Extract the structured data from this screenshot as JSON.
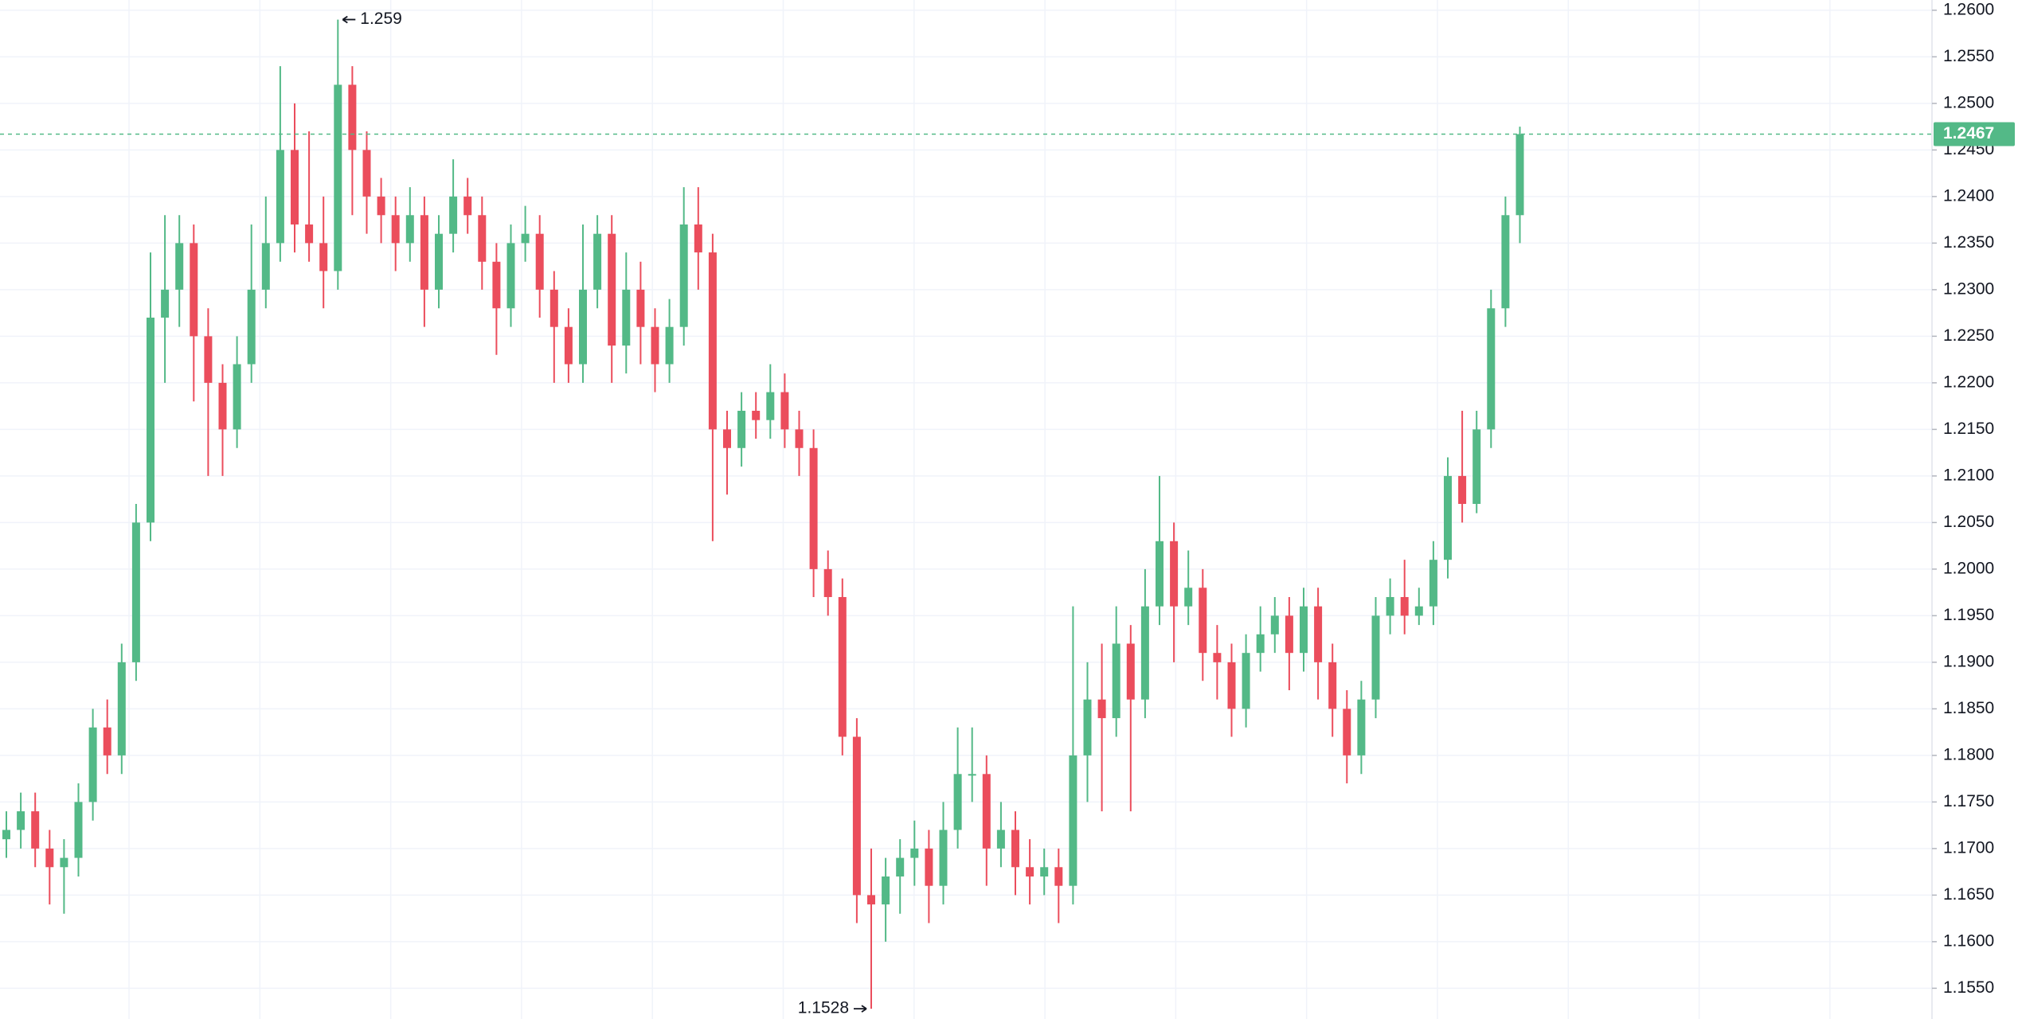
{
  "chart_data": {
    "type": "candlestick",
    "up_color": "#53b987",
    "down_color": "#eb4d5c",
    "grid": true,
    "ylim": [
      1.1517,
      1.2611
    ],
    "yticks": [
      {
        "value": 1.26,
        "label": "1.2600"
      },
      {
        "value": 1.255,
        "label": "1.2550"
      },
      {
        "value": 1.25,
        "label": "1.2500"
      },
      {
        "value": 1.245,
        "label": "1.2450"
      },
      {
        "value": 1.24,
        "label": "1.2400"
      },
      {
        "value": 1.235,
        "label": "1.2350"
      },
      {
        "value": 1.23,
        "label": "1.2300"
      },
      {
        "value": 1.225,
        "label": "1.2250"
      },
      {
        "value": 1.22,
        "label": "1.2200"
      },
      {
        "value": 1.215,
        "label": "1.2150"
      },
      {
        "value": 1.21,
        "label": "1.2100"
      },
      {
        "value": 1.205,
        "label": "1.2050"
      },
      {
        "value": 1.2,
        "label": "1.2000"
      },
      {
        "value": 1.195,
        "label": "1.1950"
      },
      {
        "value": 1.19,
        "label": "1.1900"
      },
      {
        "value": 1.185,
        "label": "1.1850"
      },
      {
        "value": 1.18,
        "label": "1.1800"
      },
      {
        "value": 1.175,
        "label": "1.1750"
      },
      {
        "value": 1.17,
        "label": "1.1700"
      },
      {
        "value": 1.165,
        "label": "1.1650"
      },
      {
        "value": 1.16,
        "label": "1.1600"
      },
      {
        "value": 1.155,
        "label": "1.1550"
      }
    ],
    "open": [
      1.171,
      1.172,
      1.174,
      1.17,
      1.168,
      1.169,
      1.175,
      1.183,
      1.18,
      1.19,
      1.205,
      1.227,
      1.23,
      1.235,
      1.225,
      1.22,
      1.215,
      1.222,
      1.23,
      1.235,
      1.245,
      1.237,
      1.235,
      1.232,
      1.252,
      1.245,
      1.24,
      1.238,
      1.235,
      1.238,
      1.23,
      1.236,
      1.24,
      1.238,
      1.233,
      1.228,
      1.235,
      1.236,
      1.23,
      1.226,
      1.222,
      1.23,
      1.236,
      1.224,
      1.23,
      1.226,
      1.222,
      1.226,
      1.237,
      1.234,
      1.215,
      1.213,
      1.217,
      1.216,
      1.219,
      1.215,
      1.213,
      1.2,
      1.197,
      1.182,
      1.165,
      1.164,
      1.167,
      1.169,
      1.17,
      1.166,
      1.172,
      1.178,
      1.178,
      1.17,
      1.172,
      1.168,
      1.167,
      1.168,
      1.166,
      1.18,
      1.186,
      1.184,
      1.192,
      1.186,
      1.196,
      1.203,
      1.196,
      1.198,
      1.191,
      1.19,
      1.185,
      1.191,
      1.193,
      1.195,
      1.191,
      1.196,
      1.19,
      1.185,
      1.18,
      1.186,
      1.195,
      1.197,
      1.195,
      1.196,
      1.201,
      1.21,
      1.207,
      1.215,
      1.228,
      1.238
    ],
    "high": [
      1.174,
      1.176,
      1.176,
      1.172,
      1.171,
      1.177,
      1.185,
      1.186,
      1.192,
      1.207,
      1.234,
      1.238,
      1.238,
      1.237,
      1.228,
      1.222,
      1.225,
      1.237,
      1.24,
      1.254,
      1.25,
      1.247,
      1.24,
      1.259,
      1.254,
      1.247,
      1.242,
      1.24,
      1.241,
      1.24,
      1.238,
      1.244,
      1.242,
      1.24,
      1.235,
      1.237,
      1.239,
      1.238,
      1.232,
      1.228,
      1.237,
      1.238,
      1.238,
      1.234,
      1.233,
      1.228,
      1.229,
      1.241,
      1.241,
      1.236,
      1.217,
      1.219,
      1.219,
      1.222,
      1.221,
      1.217,
      1.215,
      1.202,
      1.199,
      1.184,
      1.17,
      1.169,
      1.171,
      1.173,
      1.172,
      1.175,
      1.183,
      1.183,
      1.18,
      1.175,
      1.174,
      1.171,
      1.17,
      1.17,
      1.196,
      1.19,
      1.192,
      1.196,
      1.194,
      1.2,
      1.21,
      1.205,
      1.202,
      1.2,
      1.194,
      1.192,
      1.193,
      1.196,
      1.197,
      1.197,
      1.198,
      1.198,
      1.192,
      1.187,
      1.188,
      1.197,
      1.199,
      1.201,
      1.198,
      1.203,
      1.212,
      1.217,
      1.217,
      1.23,
      1.24,
      1.2475
    ],
    "low": [
      1.169,
      1.17,
      1.168,
      1.164,
      1.163,
      1.167,
      1.173,
      1.178,
      1.178,
      1.188,
      1.203,
      1.22,
      1.226,
      1.218,
      1.21,
      1.21,
      1.213,
      1.22,
      1.228,
      1.233,
      1.234,
      1.233,
      1.228,
      1.23,
      1.238,
      1.236,
      1.235,
      1.232,
      1.233,
      1.226,
      1.228,
      1.234,
      1.236,
      1.23,
      1.223,
      1.226,
      1.233,
      1.227,
      1.22,
      1.22,
      1.22,
      1.228,
      1.22,
      1.221,
      1.222,
      1.219,
      1.22,
      1.224,
      1.23,
      1.203,
      1.208,
      1.211,
      1.214,
      1.214,
      1.213,
      1.21,
      1.197,
      1.195,
      1.18,
      1.162,
      1.1528,
      1.16,
      1.163,
      1.166,
      1.162,
      1.164,
      1.17,
      1.175,
      1.166,
      1.168,
      1.165,
      1.164,
      1.165,
      1.162,
      1.164,
      1.175,
      1.174,
      1.182,
      1.174,
      1.184,
      1.194,
      1.19,
      1.194,
      1.188,
      1.186,
      1.182,
      1.183,
      1.189,
      1.191,
      1.187,
      1.189,
      1.186,
      1.182,
      1.177,
      1.178,
      1.184,
      1.193,
      1.193,
      1.194,
      1.194,
      1.199,
      1.205,
      1.206,
      1.213,
      1.226,
      1.235
    ],
    "close": [
      1.172,
      1.174,
      1.17,
      1.168,
      1.169,
      1.175,
      1.183,
      1.18,
      1.19,
      1.205,
      1.227,
      1.23,
      1.235,
      1.225,
      1.22,
      1.215,
      1.222,
      1.23,
      1.235,
      1.245,
      1.237,
      1.235,
      1.232,
      1.252,
      1.245,
      1.24,
      1.238,
      1.235,
      1.238,
      1.23,
      1.236,
      1.24,
      1.238,
      1.233,
      1.228,
      1.235,
      1.236,
      1.23,
      1.226,
      1.222,
      1.23,
      1.236,
      1.224,
      1.23,
      1.226,
      1.222,
      1.226,
      1.237,
      1.234,
      1.215,
      1.213,
      1.217,
      1.216,
      1.219,
      1.215,
      1.213,
      1.2,
      1.197,
      1.182,
      1.165,
      1.164,
      1.167,
      1.169,
      1.17,
      1.166,
      1.172,
      1.178,
      1.178,
      1.17,
      1.172,
      1.168,
      1.167,
      1.168,
      1.166,
      1.18,
      1.186,
      1.184,
      1.192,
      1.186,
      1.196,
      1.203,
      1.196,
      1.198,
      1.191,
      1.19,
      1.185,
      1.191,
      1.193,
      1.195,
      1.191,
      1.196,
      1.19,
      1.185,
      1.18,
      1.186,
      1.195,
      1.197,
      1.195,
      1.196,
      1.201,
      1.21,
      1.207,
      1.215,
      1.228,
      1.238,
      1.2467
    ],
    "max_marker": 1.259,
    "min_marker": 1.1528,
    "last_price": 1.2467
  }
}
